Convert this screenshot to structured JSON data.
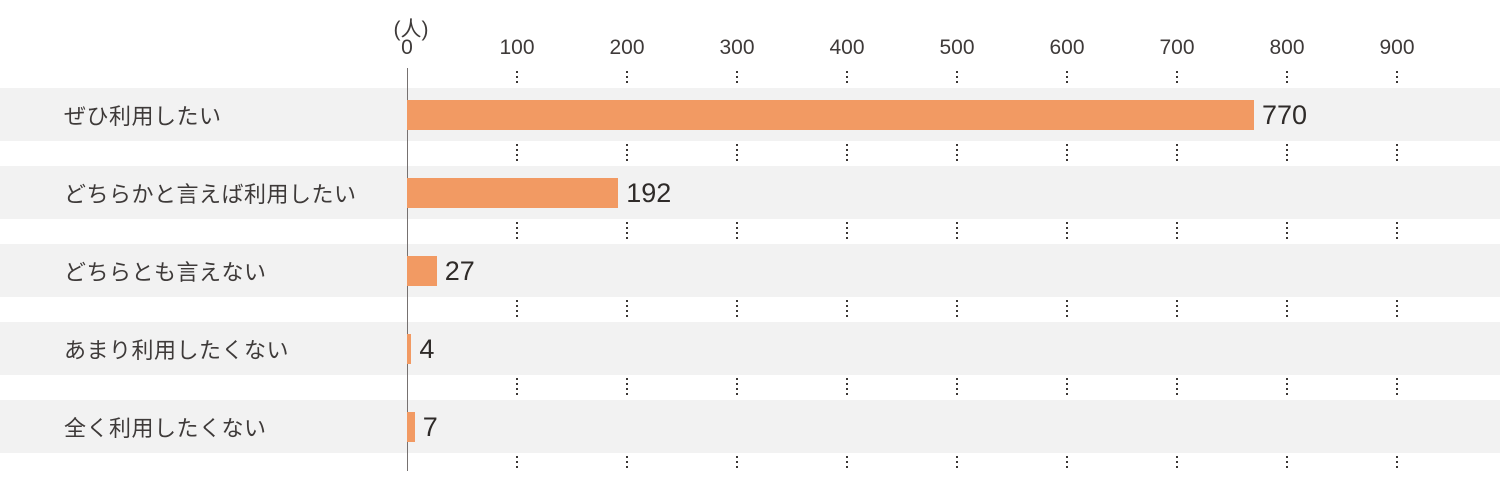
{
  "chart_data": {
    "type": "bar",
    "orientation": "horizontal",
    "title": "",
    "unit_label": "(人)",
    "categories": [
      "ぜひ利用したい",
      "どちらかと言えば利用したい",
      "どちらとも言えない",
      "あまり利用したくない",
      "全く利用したくない"
    ],
    "values": [
      770,
      192,
      27,
      4,
      7
    ],
    "value_labels": [
      "770",
      "192",
      "27",
      "4",
      "7"
    ],
    "x_ticks": [
      0,
      100,
      200,
      300,
      400,
      500,
      600,
      700,
      800,
      900
    ],
    "xlim": [
      0,
      995
    ],
    "grid": "dotted vertical gridlines, drawn only in white gaps between row bands",
    "legend_position": "none",
    "colors": {
      "bar": "#F29A63",
      "row_band": "#F2F2F2",
      "text": "#3E3A39",
      "axis_line": "#767170",
      "grid_dots": "#3B3735",
      "background": "#FFFFFF"
    }
  }
}
